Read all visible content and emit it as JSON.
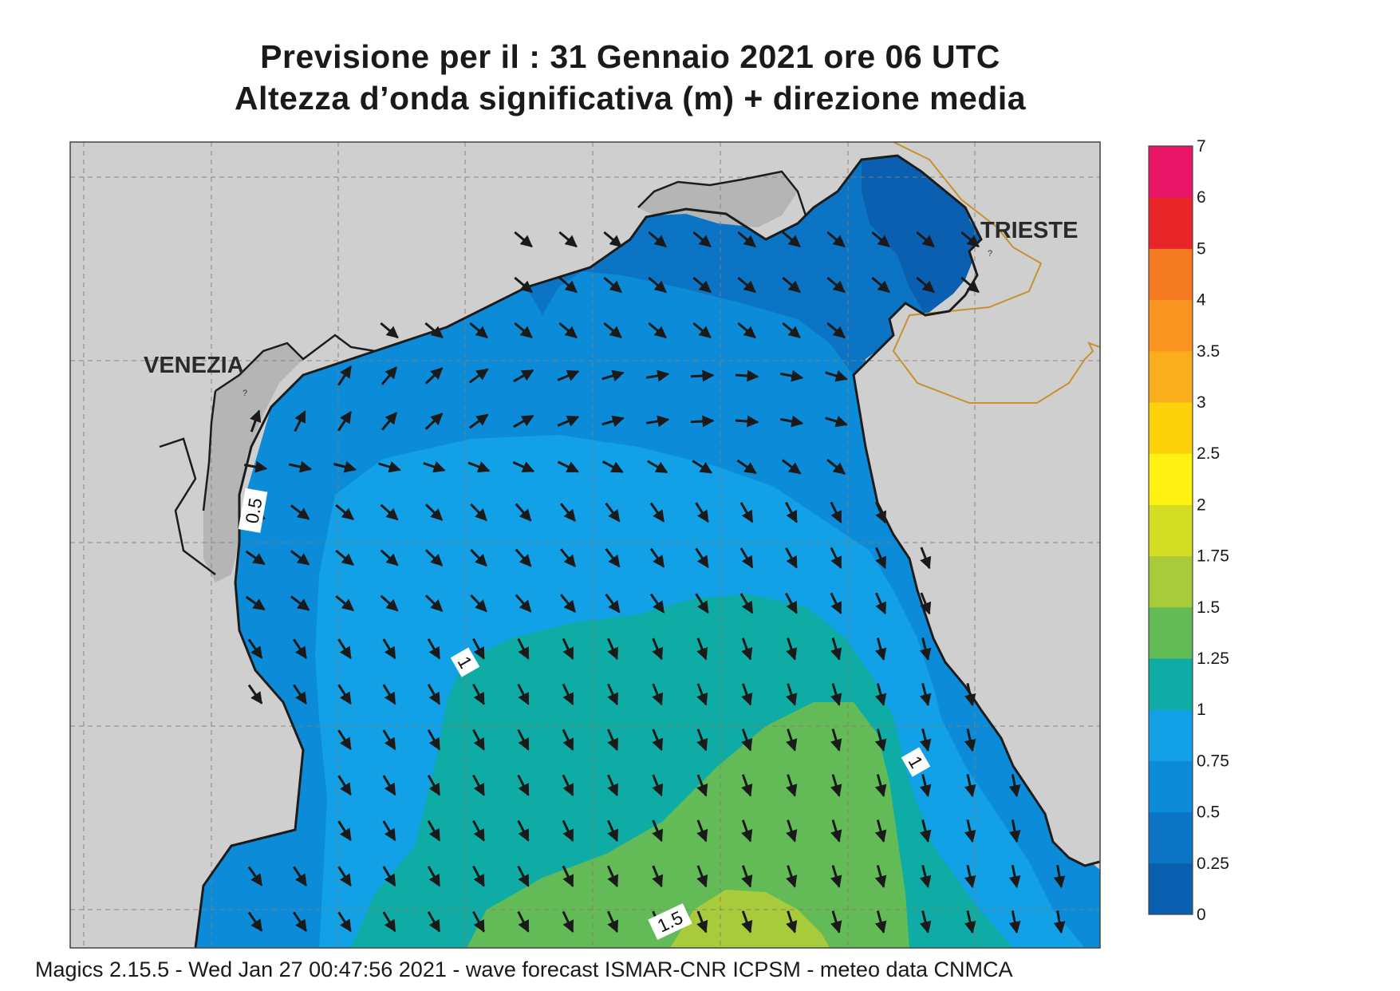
{
  "header": {
    "title_line1": "Previsione per il  :  31  Gennaio  2021   ore 06 UTC",
    "title_line2": "Altezza d’onda significativa (m) + direzione media"
  },
  "map": {
    "cities": [
      {
        "name": "VENEZIA"
      },
      {
        "name": "TRIESTE"
      }
    ],
    "contour_labels": [
      "0.5",
      "1",
      "1",
      "1.5"
    ],
    "colors": {
      "land": "#cfcfcf",
      "coast": "#1c1c1c",
      "border": "#c8902e",
      "grid": "#8a7d6a"
    }
  },
  "legend": {
    "levels": [
      "0",
      "0.25",
      "0.5",
      "0.75",
      "1",
      "1.25",
      "1.5",
      "1.75",
      "2",
      "2.5",
      "3",
      "3.5",
      "4",
      "5",
      "6",
      "7"
    ],
    "colors": [
      "#0a5fb0",
      "#0b74c4",
      "#0c8bd8",
      "#12a0e6",
      "#0faca6",
      "#63bb57",
      "#a8cb3c",
      "#d3dd24",
      "#fff212",
      "#fdd20a",
      "#fbae1c",
      "#f8941f",
      "#f57b22",
      "#ea2527",
      "#ea1566"
    ]
  },
  "footer": {
    "text": "Magics 2.15.5 - Wed Jan 27 00:47:56 2021 - wave forecast  ISMAR-CNR  ICPSM - meteo data   CNMCA"
  }
}
